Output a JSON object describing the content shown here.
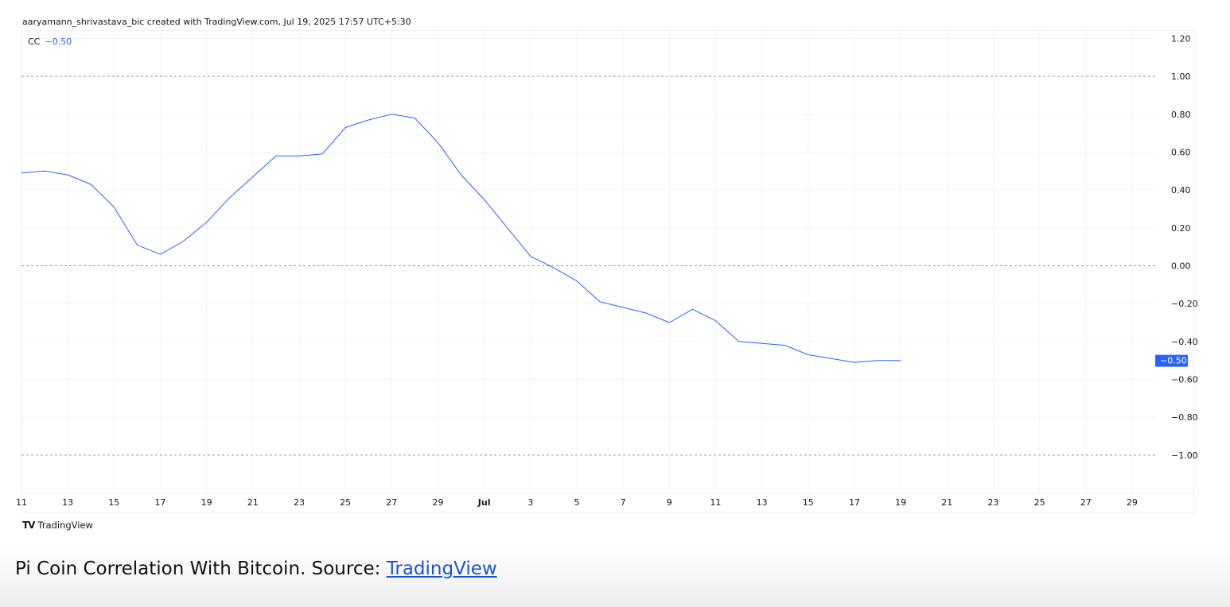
{
  "attribution": "aaryamann_shrivastava_bic created with TradingView.com, Jul 19, 2025 17:57 UTC+5:30",
  "legend": {
    "label": "CC",
    "value": "−0.50"
  },
  "logo_text": "TradingView",
  "caption": {
    "text": "Pi Coin Correlation With Bitcoin. Source: ",
    "link": "TradingView"
  },
  "colors": {
    "line": "#2962ff",
    "grid": "#f2f3f5",
    "dashed": "#9598a1",
    "badge": "#2962ff"
  },
  "chart_data": {
    "type": "line",
    "title": "",
    "series": [
      {
        "name": "CC",
        "x": [
          "2025-06-11",
          "2025-06-12",
          "2025-06-13",
          "2025-06-14",
          "2025-06-15",
          "2025-06-16",
          "2025-06-17",
          "2025-06-18",
          "2025-06-19",
          "2025-06-20",
          "2025-06-21",
          "2025-06-22",
          "2025-06-23",
          "2025-06-24",
          "2025-06-25",
          "2025-06-26",
          "2025-06-27",
          "2025-06-28",
          "2025-06-29",
          "2025-06-30",
          "2025-07-01",
          "2025-07-02",
          "2025-07-03",
          "2025-07-04",
          "2025-07-05",
          "2025-07-06",
          "2025-07-07",
          "2025-07-08",
          "2025-07-09",
          "2025-07-10",
          "2025-07-11",
          "2025-07-12",
          "2025-07-13",
          "2025-07-14",
          "2025-07-15",
          "2025-07-16",
          "2025-07-17",
          "2025-07-18",
          "2025-07-19"
        ],
        "y": [
          0.49,
          0.5,
          0.48,
          0.43,
          0.31,
          0.11,
          0.06,
          0.13,
          0.23,
          0.36,
          0.47,
          0.58,
          0.58,
          0.59,
          0.73,
          0.77,
          0.8,
          0.78,
          0.65,
          0.48,
          0.35,
          0.2,
          0.05,
          -0.01,
          -0.08,
          -0.19,
          -0.22,
          -0.25,
          -0.3,
          -0.23,
          -0.29,
          -0.4,
          -0.41,
          -0.42,
          -0.47,
          -0.49,
          -0.51,
          -0.5,
          -0.5
        ]
      }
    ],
    "x_ticks": [
      {
        "date": "2025-06-11",
        "label": "11"
      },
      {
        "date": "2025-06-13",
        "label": "13"
      },
      {
        "date": "2025-06-15",
        "label": "15"
      },
      {
        "date": "2025-06-17",
        "label": "17"
      },
      {
        "date": "2025-06-19",
        "label": "19"
      },
      {
        "date": "2025-06-21",
        "label": "21"
      },
      {
        "date": "2025-06-23",
        "label": "23"
      },
      {
        "date": "2025-06-25",
        "label": "25"
      },
      {
        "date": "2025-06-27",
        "label": "27"
      },
      {
        "date": "2025-06-29",
        "label": "29"
      },
      {
        "date": "2025-07-01",
        "label": "Jul",
        "month": true
      },
      {
        "date": "2025-07-03",
        "label": "3"
      },
      {
        "date": "2025-07-05",
        "label": "5"
      },
      {
        "date": "2025-07-07",
        "label": "7"
      },
      {
        "date": "2025-07-09",
        "label": "9"
      },
      {
        "date": "2025-07-11",
        "label": "11"
      },
      {
        "date": "2025-07-13",
        "label": "13"
      },
      {
        "date": "2025-07-15",
        "label": "15"
      },
      {
        "date": "2025-07-17",
        "label": "17"
      },
      {
        "date": "2025-07-19",
        "label": "19"
      },
      {
        "date": "2025-07-21",
        "label": "21"
      },
      {
        "date": "2025-07-23",
        "label": "23"
      },
      {
        "date": "2025-07-25",
        "label": "25"
      },
      {
        "date": "2025-07-27",
        "label": "27"
      },
      {
        "date": "2025-07-29",
        "label": "29"
      }
    ],
    "y_ticks": [
      {
        "value": 1.2,
        "label": "1.20"
      },
      {
        "value": 1.0,
        "label": "1.00"
      },
      {
        "value": 0.8,
        "label": "0.80"
      },
      {
        "value": 0.6,
        "label": "0.60"
      },
      {
        "value": 0.4,
        "label": "0.40"
      },
      {
        "value": 0.2,
        "label": "0.20"
      },
      {
        "value": 0.0,
        "label": "0.00"
      },
      {
        "value": -0.2,
        "label": "−0.20"
      },
      {
        "value": -0.4,
        "label": "−0.40"
      },
      {
        "value": -0.6,
        "label": "−0.60"
      },
      {
        "value": -0.8,
        "label": "−0.80"
      },
      {
        "value": -1.0,
        "label": "−1.00"
      }
    ],
    "dashed_levels": [
      1.0,
      0.0,
      -1.0
    ],
    "last_value": {
      "value": -0.5,
      "label": "−0.50"
    },
    "ylim": [
      -1.2,
      1.2
    ],
    "xlim": [
      "2025-06-11",
      "2025-07-30"
    ],
    "grid": true
  }
}
